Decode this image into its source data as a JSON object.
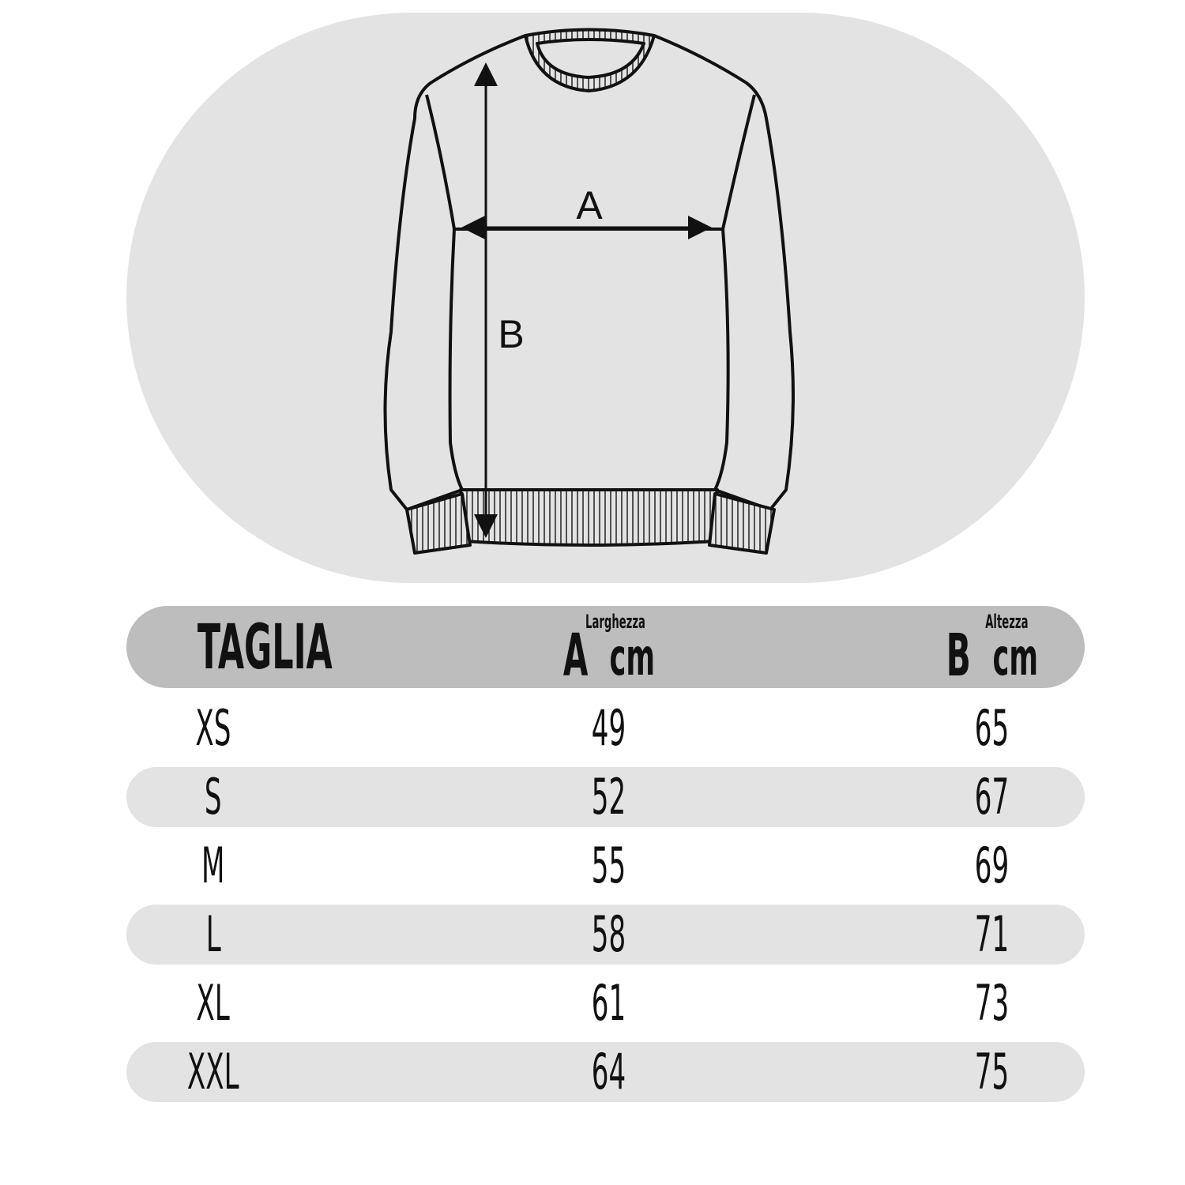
{
  "diagram": {
    "label_a": "A",
    "label_b": "B"
  },
  "table": {
    "header": {
      "size": "TAGLIA",
      "a_letter": "A",
      "a_name": "Larghezza",
      "a_unit": "cm",
      "b_letter": "B",
      "b_name": "Altezza",
      "b_unit": "cm"
    },
    "rows": [
      {
        "size": "XS",
        "a": "49",
        "b": "65"
      },
      {
        "size": "S",
        "a": "52",
        "b": "67"
      },
      {
        "size": "M",
        "a": "55",
        "b": "69"
      },
      {
        "size": "L",
        "a": "58",
        "b": "71"
      },
      {
        "size": "XL",
        "a": "61",
        "b": "73"
      },
      {
        "size": "XXL",
        "a": "64",
        "b": "75"
      }
    ]
  },
  "colors": {
    "header_bg": "#bdbdbd",
    "stripe_bg": "#e3e3e3",
    "oval_bg": "#e3e3e3"
  }
}
